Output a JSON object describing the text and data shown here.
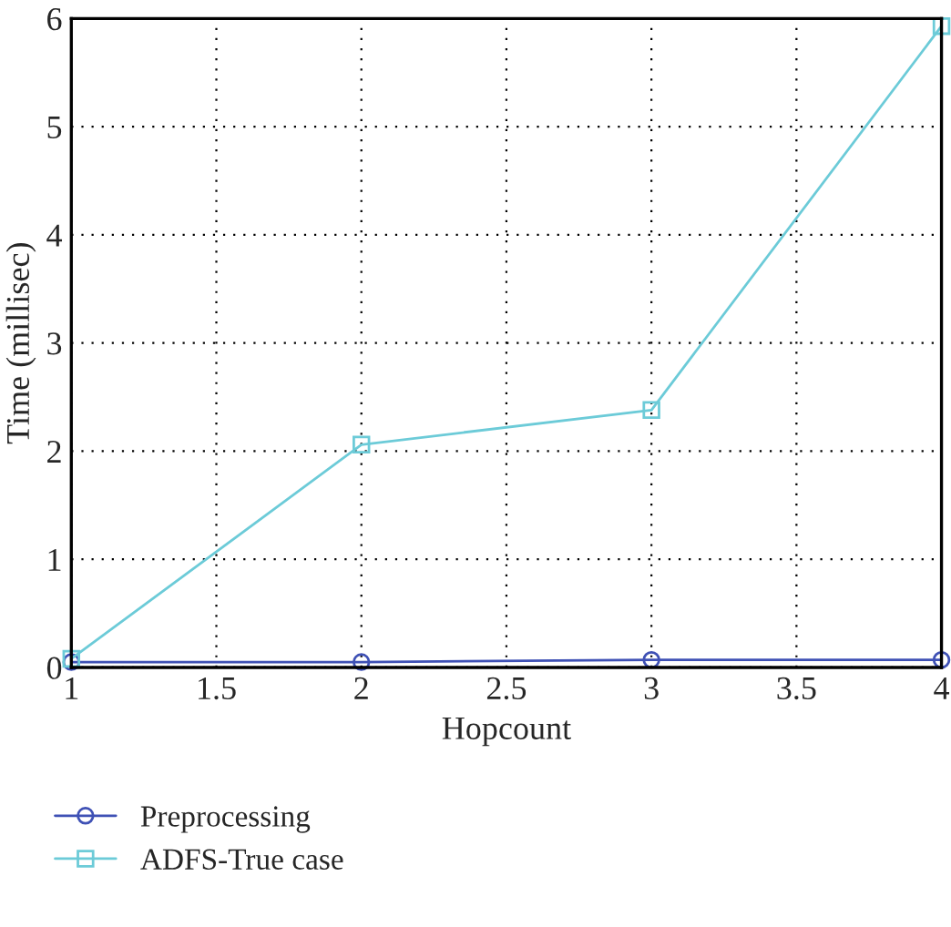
{
  "chart_data": {
    "type": "line",
    "xlabel": "Hopcount",
    "ylabel": "Time (millisec)",
    "x": [
      1,
      2,
      3,
      4
    ],
    "series": [
      {
        "name": "Preprocessing",
        "color": "#3f51b5",
        "values": [
          0.05,
          0.05,
          0.07,
          0.07
        ],
        "marker": "circle"
      },
      {
        "name": "ADFS-True case",
        "color": "#6ccbd8",
        "values": [
          0.08,
          2.06,
          2.38,
          5.93
        ],
        "marker": "square"
      }
    ],
    "xlim": [
      1,
      4
    ],
    "xticks": [
      1,
      1.5,
      2,
      2.5,
      3,
      3.5,
      4
    ],
    "ylim": [
      0,
      6
    ],
    "yticks": [
      0,
      1,
      2,
      3,
      4,
      5,
      6
    ],
    "grid": true,
    "legend": "bottom",
    "line_style": "solid"
  }
}
